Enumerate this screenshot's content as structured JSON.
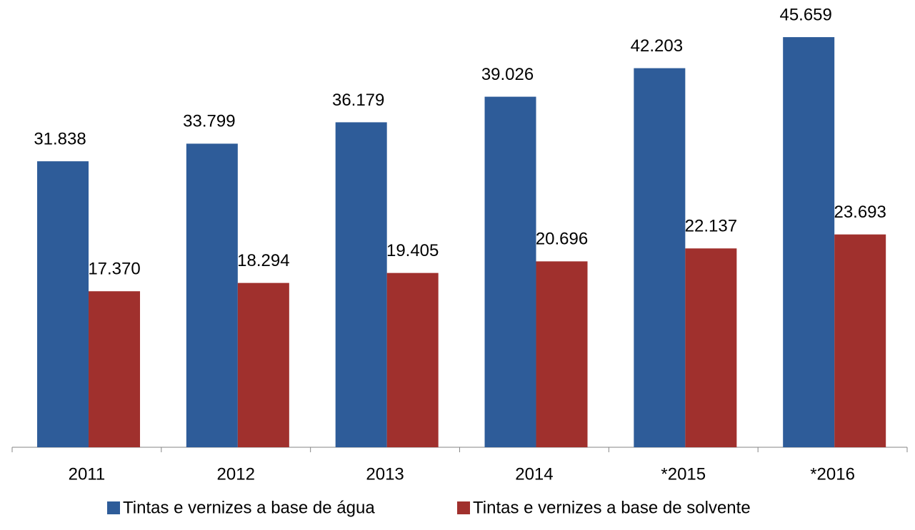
{
  "chart_data": {
    "type": "bar",
    "categories": [
      "2011",
      "2012",
      "2013",
      "2014",
      "*2015",
      "*2016"
    ],
    "series": [
      {
        "name": "Tintas e vernizes a base de água",
        "color": "#2e5c99",
        "values": [
          31838,
          33799,
          36179,
          39026,
          42203,
          45659
        ],
        "value_labels": [
          "31.838",
          "33.799",
          "36.179",
          "39.026",
          "42.203",
          "45.659"
        ]
      },
      {
        "name": "Tintas e vernizes a base de solvente",
        "color": "#a0302d",
        "values": [
          17370,
          18294,
          19405,
          20696,
          22137,
          23693
        ],
        "value_labels": [
          "17.370",
          "18.294",
          "19.405",
          "20.696",
          "22.137",
          "23.693"
        ]
      }
    ],
    "ylim": [
      0,
      50000
    ],
    "legend": "bottom"
  }
}
